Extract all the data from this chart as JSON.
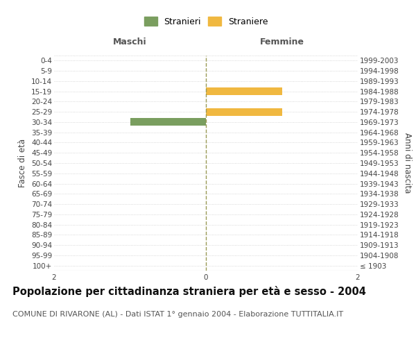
{
  "age_groups": [
    "100+",
    "95-99",
    "90-94",
    "85-89",
    "80-84",
    "75-79",
    "70-74",
    "65-69",
    "60-64",
    "55-59",
    "50-54",
    "45-49",
    "40-44",
    "35-39",
    "30-34",
    "25-29",
    "20-24",
    "15-19",
    "10-14",
    "5-9",
    "0-4"
  ],
  "birth_years": [
    "≤ 1903",
    "1904-1908",
    "1909-1913",
    "1914-1918",
    "1919-1923",
    "1924-1928",
    "1929-1933",
    "1934-1938",
    "1939-1943",
    "1944-1948",
    "1949-1953",
    "1954-1958",
    "1959-1963",
    "1964-1968",
    "1969-1973",
    "1974-1978",
    "1979-1983",
    "1984-1988",
    "1989-1993",
    "1994-1998",
    "1999-2003"
  ],
  "males": [
    0,
    0,
    0,
    0,
    0,
    0,
    0,
    0,
    0,
    0,
    0,
    0,
    0,
    0,
    1,
    0,
    0,
    0,
    0,
    0,
    0
  ],
  "females": [
    0,
    0,
    0,
    0,
    0,
    0,
    0,
    0,
    0,
    0,
    0,
    0,
    0,
    0,
    0,
    1,
    0,
    1,
    0,
    0,
    0
  ],
  "male_color": "#7a9e5f",
  "female_color": "#f0b840",
  "xlim": 2,
  "title": "Popolazione per cittadinanza straniera per età e sesso - 2004",
  "subtitle": "COMUNE DI RIVARONE (AL) - Dati ISTAT 1° gennaio 2004 - Elaborazione TUTTITALIA.IT",
  "left_header": "Maschi",
  "right_header": "Femmine",
  "ylabel_left": "Fasce di età",
  "ylabel_right": "Anni di nascita",
  "legend_male": "Stranieri",
  "legend_female": "Straniere",
  "background_color": "#ffffff",
  "grid_color": "#cccccc",
  "bar_height": 0.75,
  "title_fontsize": 10.5,
  "subtitle_fontsize": 8,
  "axis_label_fontsize": 8.5,
  "tick_fontsize": 7.5,
  "header_fontsize": 9
}
